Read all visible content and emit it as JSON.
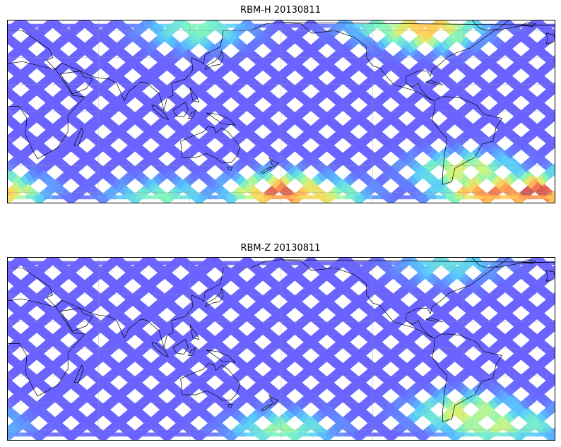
{
  "figure": {
    "panels": [
      {
        "title": "RBM-H 20130811",
        "hotspots": [
          {
            "lon": 180,
            "lat": -58,
            "intensity": 0.95
          },
          {
            "lon": 200,
            "lat": -62,
            "intensity": 0.65
          },
          {
            "lon": 345,
            "lat": -58,
            "intensity": 1.0
          },
          {
            "lon": 318,
            "lat": -58,
            "intensity": 0.9
          },
          {
            "lon": 300,
            "lat": -42,
            "intensity": 0.55
          },
          {
            "lon": 275,
            "lat": 62,
            "intensity": 0.7
          },
          {
            "lon": 255,
            "lat": 65,
            "intensity": 0.4
          },
          {
            "lon": 125,
            "lat": 62,
            "intensity": 0.35
          },
          {
            "lon": 100,
            "lat": -62,
            "intensity": 0.35
          }
        ]
      },
      {
        "title": "RBM-Z 20130811",
        "hotspots": [
          {
            "lon": 300,
            "lat": -45,
            "intensity": 0.55
          },
          {
            "lon": 318,
            "lat": -55,
            "intensity": 0.5
          },
          {
            "lon": 180,
            "lat": -58,
            "intensity": 0.4
          },
          {
            "lon": 335,
            "lat": -55,
            "intensity": 0.35
          },
          {
            "lon": 290,
            "lat": 64,
            "intensity": 0.25
          }
        ]
      }
    ],
    "map": {
      "lon_range": [
        0,
        360
      ],
      "lat_range": [
        -68,
        68
      ],
      "data_lat_range": [
        -65,
        65
      ],
      "grid_lons": [
        0,
        60,
        120,
        180,
        240,
        300,
        360
      ],
      "grid_lats": [
        -60,
        -40,
        -20,
        0,
        20,
        40,
        60
      ],
      "projection": "plate-carree",
      "colormap": [
        "#6b63ff",
        "#58c8ff",
        "#7ff5c4",
        "#d7f57a",
        "#ffd05a",
        "#ff8a52",
        "#cc5555"
      ]
    }
  }
}
